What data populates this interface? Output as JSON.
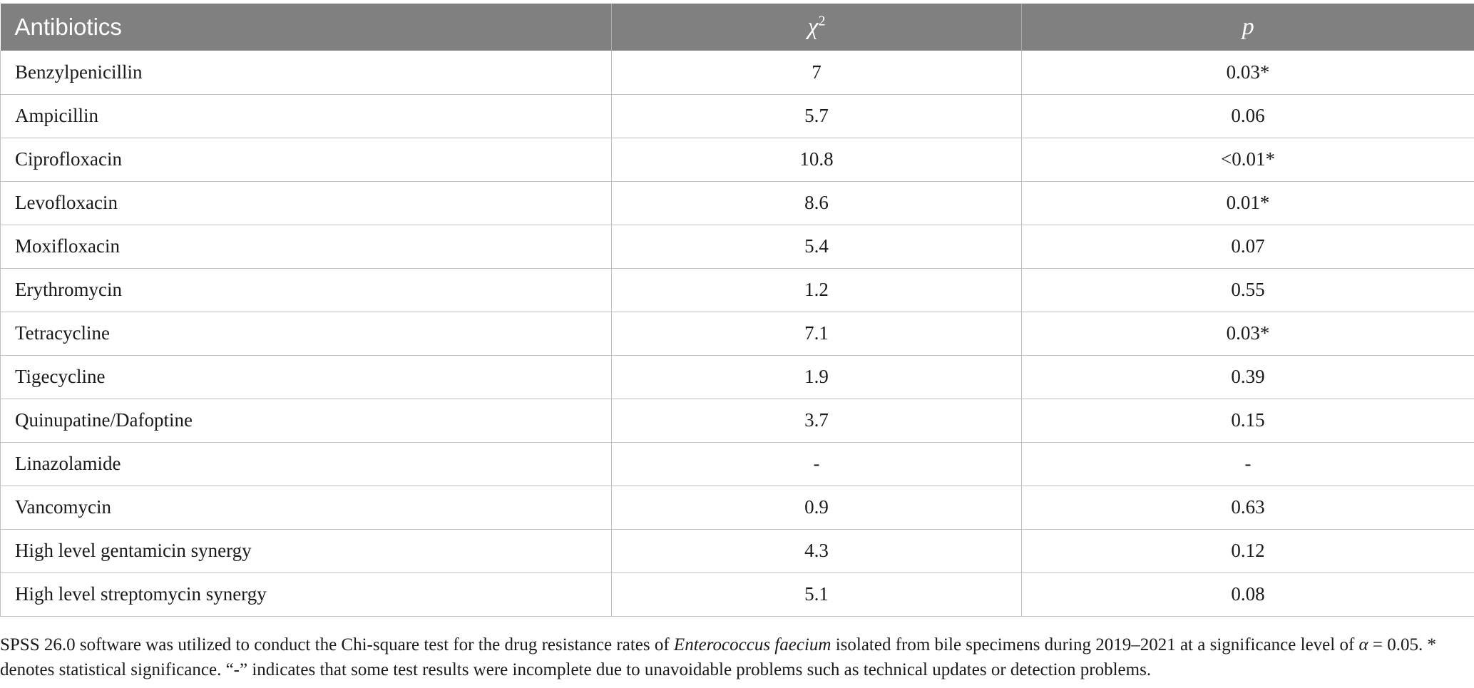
{
  "table": {
    "headers": {
      "antibiotics": "Antibiotics",
      "chi_symbol": "χ",
      "chi_sup": "2",
      "p": "p"
    },
    "rows": [
      {
        "antibiotic": "Benzylpenicillin",
        "chi2": "7",
        "p": "0.03*"
      },
      {
        "antibiotic": "Ampicillin",
        "chi2": "5.7",
        "p": "0.06"
      },
      {
        "antibiotic": "Ciprofloxacin",
        "chi2": "10.8",
        "p": "<0.01*"
      },
      {
        "antibiotic": "Levofloxacin",
        "chi2": "8.6",
        "p": "0.01*"
      },
      {
        "antibiotic": "Moxifloxacin",
        "chi2": "5.4",
        "p": "0.07"
      },
      {
        "antibiotic": "Erythromycin",
        "chi2": "1.2",
        "p": "0.55"
      },
      {
        "antibiotic": "Tetracycline",
        "chi2": "7.1",
        "p": "0.03*"
      },
      {
        "antibiotic": "Tigecycline",
        "chi2": "1.9",
        "p": "0.39"
      },
      {
        "antibiotic": "Quinupatine/Dafoptine",
        "chi2": "3.7",
        "p": "0.15"
      },
      {
        "antibiotic": "Linazolamide",
        "chi2": "-",
        "p": "-"
      },
      {
        "antibiotic": "Vancomycin",
        "chi2": "0.9",
        "p": "0.63"
      },
      {
        "antibiotic": "High level gentamicin synergy",
        "chi2": "4.3",
        "p": "0.12"
      },
      {
        "antibiotic": "High level streptomycin synergy",
        "chi2": "5.1",
        "p": "0.08"
      }
    ]
  },
  "footnote": {
    "part1": "SPSS 26.0 software was utilized to conduct the Chi-square test for the drug resistance rates of ",
    "organism": "Enterococcus faecium",
    "part2": " isolated from bile specimens during 2019–2021 at a significance level of ",
    "alpha": "α",
    "part3": " = 0.05. * denotes statistical significance. “-” indicates that some test results were incomplete due to unavoidable problems such as technical updates or detection problems."
  }
}
